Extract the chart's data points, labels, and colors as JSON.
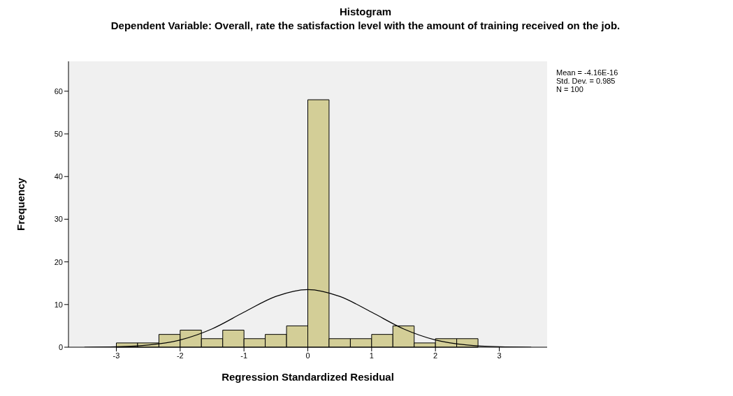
{
  "chart_data": {
    "type": "histogram",
    "title": "Histogram",
    "subtitle": "Dependent Variable: Overall, rate the satisfaction level with the amount of training received on the job.",
    "xlabel": "Regression Standardized Residual",
    "ylabel": "Frequency",
    "bins": [
      -3,
      -2.667,
      -2.333,
      -2,
      -1.667,
      -1.333,
      -1,
      -0.667,
      -0.333,
      0,
      0.333,
      0.667,
      1,
      1.333,
      1.667,
      2,
      2.333,
      2.667
    ],
    "values": [
      1,
      1,
      3,
      4,
      2,
      4,
      2,
      3,
      5,
      58,
      2,
      2,
      3,
      5,
      1,
      2,
      2
    ],
    "color": "#d3ce97",
    "series": [
      {
        "type": "line",
        "color": "#000000",
        "x": [
          -3.5,
          -3,
          -2.5,
          -2,
          -1.5,
          -1,
          -0.5,
          0,
          0.5,
          1,
          1.5,
          2,
          2.5,
          3,
          3.5
        ],
        "values": [
          0,
          0.1,
          0.5,
          1.7,
          4.3,
          8.2,
          11.9,
          13.5,
          11.9,
          8.2,
          4.3,
          1.7,
          0.5,
          0.1,
          0
        ]
      }
    ],
    "xlim": [
      -3.75,
      3.75
    ],
    "xticks": [
      -3,
      -2,
      -1,
      0,
      1,
      2,
      3
    ],
    "ylim": [
      0,
      67
    ],
    "yticks": [
      0,
      10,
      20,
      30,
      40,
      50,
      60
    ],
    "grid": false,
    "annotations": [
      "Mean = -4.16E-16",
      "Std. Dev. = 0.985",
      "N = 100"
    ]
  }
}
